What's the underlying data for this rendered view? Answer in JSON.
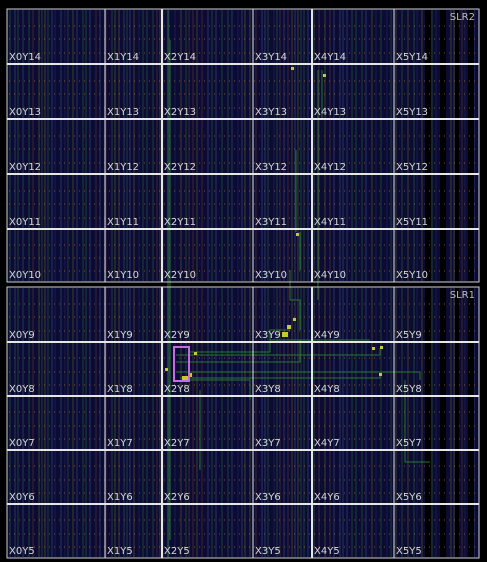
{
  "device_view": {
    "columns": [
      "X0",
      "X1",
      "X2",
      "X3",
      "X4",
      "X5"
    ],
    "slrs": [
      {
        "name": "SLR2",
        "rows": [
          "Y14",
          "Y13",
          "Y12",
          "Y11",
          "Y10"
        ]
      },
      {
        "name": "SLR1",
        "rows": [
          "Y9",
          "Y8",
          "Y7",
          "Y6",
          "Y5"
        ]
      }
    ],
    "clock_region_label_color": "#d8d8d8",
    "grid_color": "#e6e6e6",
    "slr_border_color": "#cfcfcf",
    "fabric_color": "#0b0b33",
    "selection_color": "#c86be0",
    "net_color": "#2f8f2f",
    "placed_cell_color": "#c8c832"
  }
}
